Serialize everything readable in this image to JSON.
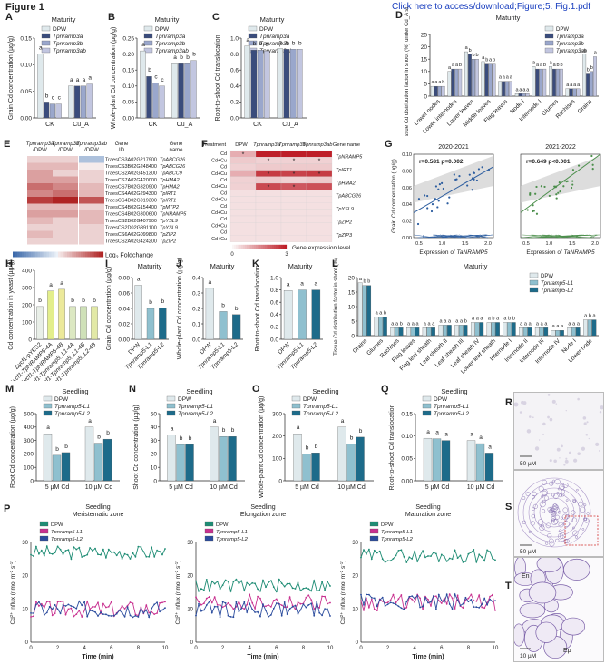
{
  "doc": {
    "figure_label": "Figure 1",
    "download_link": "Click here to access/download;Figure;5. Fig.1.pdf"
  },
  "colors": {
    "dpw": "#dfe9ec",
    "a": "#3a4c7c",
    "b": "#9aa7cc",
    "ab": "#c2c6e0",
    "l1": "#8fc0cf",
    "l2": "#1d6b8a",
    "green": "#1e8c74",
    "pink": "#c8308f",
    "blue": "#2a4b9d"
  },
  "legend_top": [
    "DPW",
    "Tpnramp3a",
    "Tpnramp3b",
    "Tpnramp3ab"
  ],
  "legend_l": [
    "DPW",
    "Tpnramp5-L1",
    "Tpnramp5-L2"
  ],
  "panels": {
    "A": {
      "letter": "A",
      "title": "Maturity",
      "ylabel": "Grain Cd concentration (µg/g)",
      "yticks": [
        "0.00",
        "0.05",
        "0.10",
        "0.15"
      ],
      "cats": [
        "CK",
        "Cu_A"
      ],
      "values": [
        [
          0.16,
          0.08
        ],
        [
          0.04,
          0.08
        ],
        [
          0.035,
          0.08
        ],
        [
          0.035,
          0.085
        ]
      ],
      "sig": [
        [
          "a",
          "a"
        ],
        [
          "b",
          "a"
        ],
        [
          "c",
          "a"
        ],
        [
          "c",
          "a"
        ]
      ],
      "ymax": 0.2
    },
    "B": {
      "letter": "B",
      "title": "Maturity",
      "ylabel": "Whole-plant Cd concentration (µg/g)",
      "yticks": [
        "0.00",
        "0.05",
        "0.10",
        "0.15",
        "0.20",
        "0.25"
      ],
      "cats": [
        "CK",
        "Cu_A"
      ],
      "values": [
        [
          0.21,
          0.17
        ],
        [
          0.13,
          0.17
        ],
        [
          0.11,
          0.17
        ],
        [
          0.1,
          0.18
        ]
      ],
      "sig": [
        [
          "a",
          "a"
        ],
        [
          "b",
          "b"
        ],
        [
          "c",
          "b"
        ],
        [
          "c",
          "b"
        ]
      ],
      "ymax": 0.25
    },
    "C": {
      "letter": "C",
      "title": "Maturity",
      "ylabel": "Root-to-shoot Cd translocation",
      "yticks": [
        "0.0",
        "0.2",
        "0.4",
        "0.6",
        "0.8",
        "1.0"
      ],
      "cats": [
        "CK",
        "Cu_A"
      ],
      "values": [
        [
          0.9,
          0.87
        ],
        [
          0.85,
          0.86
        ],
        [
          0.85,
          0.86
        ],
        [
          0.84,
          0.86
        ]
      ],
      "sig": [
        [
          "a",
          "a"
        ],
        [
          "b",
          "b"
        ],
        [
          "b",
          "b"
        ],
        [
          "b",
          "b"
        ]
      ],
      "ymax": 1.0
    },
    "D": {
      "letter": "D",
      "title": "Maturity",
      "ylabel": "Tissue Cd distribution factor in shoot (%) under Cd_A stress",
      "yticks": [
        "0",
        "5",
        "10",
        "15",
        "20",
        "25"
      ],
      "cats": [
        "Lower nodes",
        "Lower internodes",
        "Lower leaves",
        "Middle leaves",
        "Flag leaves",
        "Node I",
        "Internode I",
        "Glumes",
        "Rachises",
        "Grains"
      ],
      "values": [
        [
          4,
          4,
          4,
          4
        ],
        [
          10,
          11,
          11,
          11
        ],
        [
          18,
          17,
          15,
          15
        ],
        [
          14,
          13,
          13,
          13
        ],
        [
          6,
          6,
          6,
          6
        ],
        [
          1,
          1,
          1,
          1
        ],
        [
          12,
          11,
          11,
          11
        ],
        [
          12,
          11,
          11,
          11
        ],
        [
          3,
          3,
          3,
          3
        ],
        [
          17,
          9,
          10,
          16
        ]
      ],
      "sig": [
        "aaab",
        "aaab",
        "abbb",
        "abab",
        "aaaa",
        "aaaa",
        "aaab",
        "aabb",
        "aaaa",
        "abba"
      ],
      "ymax": 25
    },
    "E": {
      "letter": "E",
      "cols": [
        "Tpnramp3a /DPW",
        "Tpnramp3b /DPW",
        "Tpnramp3ab /DPW",
        "Gene ID",
        "Gene name"
      ],
      "genes": [
        [
          "TraesCS3A02G217900",
          "TpABCG26"
        ],
        [
          "TraesCS3B02G248400",
          "TpABCG26"
        ],
        [
          "TraesCS2A02G451300",
          "TpABCC9"
        ],
        [
          "TraesCS7A02G420000",
          "TpHMA2"
        ],
        [
          "TraesCS7B02G320900",
          "TpHMA2"
        ],
        [
          "TraesCS4A02G294300",
          "TpIRT1"
        ],
        [
          "TraesCS4B02G019300",
          "TpIRT1"
        ],
        [
          "TraesCS4B02G154400",
          "TpMTP2"
        ],
        [
          "TraesCS4B02G300600",
          "TpNRAMP5"
        ],
        [
          "TraesCS2B02G407900",
          "TpYSL9"
        ],
        [
          "TraesCS2D02G391100",
          "TpYSL9"
        ],
        [
          "TraesCS6A02G099800",
          "TpZIP2"
        ],
        [
          "TraesCS2A02G424200",
          "TpZIP2"
        ]
      ],
      "matrix": [
        [
          1,
          1,
          -3
        ],
        [
          2,
          2,
          0
        ],
        [
          3,
          1,
          1
        ],
        [
          3,
          3,
          1
        ],
        [
          5,
          4,
          2
        ],
        [
          4,
          5,
          2
        ],
        [
          7,
          8,
          6
        ],
        [
          2,
          2,
          1
        ],
        [
          3,
          3,
          2
        ],
        [
          2,
          1,
          2
        ],
        [
          1,
          1,
          1
        ],
        [
          2,
          1,
          1
        ],
        [
          1,
          1,
          1
        ]
      ],
      "scale_label": "Log",
      "scale_sub": "2",
      "scale_suffix": " Foldchange",
      "scale_ticks": [
        "-8",
        "0",
        "8"
      ]
    },
    "F": {
      "letter": "F",
      "header": [
        "Treatment",
        "DPW",
        "Tpnramp3a",
        "Tpnramp3b",
        "Tpnramp3ab",
        "Gene name"
      ],
      "rows": [
        "Cd",
        "Cd+Cu",
        "Cd",
        "Cd+Cu",
        "Cd",
        "Cd+Cu",
        "Cd",
        "Cd+Cu",
        "Cd",
        "Cd+Cu",
        "Cd",
        "Cd+Cu",
        "Cd",
        "Cd+Cu"
      ],
      "genes": [
        "TpNRAMP5",
        "TpIRT1",
        "TpHMA2",
        "TpABCG26",
        "TpYSL9",
        "TpZIP2",
        "TpZIP3"
      ],
      "levels": [
        [
          1,
          3,
          3,
          3
        ],
        [
          0.6,
          0.5,
          0.5,
          0.5
        ],
        [
          0.5,
          0.6,
          0.6,
          0.6
        ],
        [
          1,
          2.6,
          2.5,
          2.6
        ],
        [
          0.5,
          0.6,
          0.5,
          0.6
        ],
        [
          0.5,
          2.4,
          2.2,
          2.3
        ],
        [
          0.3,
          0.3,
          0.3,
          0.3
        ],
        [
          0.3,
          0.3,
          0.3,
          0.3
        ],
        [
          0.3,
          0.3,
          0.3,
          0.3
        ],
        [
          0.3,
          0.3,
          0.3,
          0.3
        ],
        [
          0.3,
          0.3,
          0.3,
          0.3
        ],
        [
          0.3,
          0.3,
          0.3,
          0.3
        ],
        [
          0.3,
          0.3,
          0.3,
          0.3
        ],
        [
          0.3,
          0.3,
          0.3,
          0.3
        ]
      ],
      "stars": "*",
      "scale_label": "Gene expression level",
      "scale_ticks": [
        "0",
        "3"
      ]
    },
    "G": {
      "letter": "G",
      "plots": [
        {
          "title": "2020-2021",
          "stat": "r=0.581  p=0.002"
        },
        {
          "title": "2021-2022",
          "stat": "r=0.649  p<0.001"
        }
      ],
      "ylabel": "Grain Cd concentration (µg/g)",
      "xlabel": "Expression of TaNRAMP5",
      "yticks": [
        "0.00",
        "0.02",
        "0.04",
        "0.06",
        "0.08",
        "0.10"
      ],
      "xticks": [
        "0.5",
        "1.0",
        "1.5",
        "2.0"
      ]
    },
    "H": {
      "letter": "H",
      "ylabel": "Cd concentration in yeast (µg/g)",
      "yticks": [
        "0",
        "100",
        "200",
        "300",
        "400"
      ],
      "cats": [
        "Δycf1-pYES2",
        "Δycf1-TpNRAMP5-4A",
        "Δycf1-TpNRAMP5-4B",
        "Δycf1-Tpnramp5_L1-4A",
        "Δycf1-Tpnramp5_L1-4B",
        "Δycf1-Tpnramp5_L2-4B"
      ],
      "values": [
        190,
        280,
        290,
        190,
        190,
        190
      ],
      "sig": [
        "b",
        "a",
        "a",
        "b",
        "b",
        "b"
      ],
      "ymax": 400
    },
    "I": {
      "letter": "I",
      "title": "Maturity",
      "ylabel": "Grain Cd concentration (µg/g)",
      "yticks": [
        "0.00",
        "0.02",
        "0.04",
        "0.06",
        "0.08"
      ],
      "cats": [
        "DPW",
        "Tpnramp5-L1",
        "Tpnramp5-L2"
      ],
      "values": [
        0.07,
        0.04,
        0.041
      ],
      "sig": [
        "a",
        "b",
        "b"
      ],
      "ymax": 0.08
    },
    "J": {
      "letter": "J",
      "title": "Maturity",
      "ylabel": "Whole-plant Cd concentration (µg/g)",
      "yticks": [
        "0.0",
        "0.1",
        "0.2",
        "0.3",
        "0.4"
      ],
      "cats": [
        "DPW",
        "Tpnramp5-L1",
        "Tpnramp5-L2"
      ],
      "values": [
        0.33,
        0.18,
        0.16
      ],
      "sig": [
        "a",
        "b",
        "b"
      ],
      "ymax": 0.4
    },
    "K": {
      "letter": "K",
      "title": "Maturity",
      "ylabel": "Root-to-shoot Cd translocation",
      "yticks": [
        "0.0",
        "0.2",
        "0.4",
        "0.6",
        "0.8",
        "1.0"
      ],
      "cats": [
        "DPW",
        "Tpnramp5-L1",
        "Tpnramp5-L2"
      ],
      "values": [
        0.79,
        0.8,
        0.8
      ],
      "sig": [
        "a",
        "a",
        "a"
      ],
      "ymax": 1.0
    },
    "L": {
      "letter": "L",
      "title": "Maturity",
      "ylabel": "Tissue Cd distribution factor in shoot (%)",
      "yticks": [
        "0",
        "5",
        "10",
        "15",
        "20"
      ],
      "cats": [
        "Grains",
        "Glumes",
        "Rachises",
        "Flag leaves",
        "Flag leaf sheath",
        "Leaf sheath II",
        "Leaf sheath III",
        "Leaf sheath IV",
        "Lower leaf sheath",
        "Internode I",
        "Internode II",
        "Internode III",
        "Internode IV",
        "Node I",
        "Lower node"
      ],
      "values": [
        [
          20,
          19,
          19
        ],
        [
          7,
          7,
          7
        ],
        [
          3,
          3,
          3
        ],
        [
          3,
          3,
          3
        ],
        [
          3,
          3,
          3
        ],
        [
          4,
          4,
          4
        ],
        [
          4,
          4,
          4
        ],
        [
          5,
          5,
          5
        ],
        [
          5,
          5,
          5
        ],
        [
          5,
          5,
          5
        ],
        [
          3,
          3,
          3
        ],
        [
          3,
          3,
          3
        ],
        [
          2,
          2,
          2
        ],
        [
          3,
          3,
          3
        ],
        [
          6,
          6,
          6
        ]
      ],
      "sig": [
        "abb",
        "aab",
        "aab",
        "aaa",
        "aaa",
        "aaa",
        "aab",
        "aaa",
        "aba",
        "abb",
        "aaa",
        "aaa",
        "aaa",
        "aaa",
        "aba"
      ],
      "ymax": 22
    },
    "M": {
      "letter": "M",
      "title": "Seedling",
      "ylabel": "Root Cd concentration (µg/g)",
      "yticks": [
        "0",
        "100",
        "200",
        "300",
        "400",
        "500"
      ],
      "cats": [
        "5 µM Cd",
        "10 µM Cd"
      ],
      "values": [
        [
          350,
          400
        ],
        [
          190,
          280
        ],
        [
          210,
          310
        ]
      ],
      "sig": [
        [
          "a",
          "a"
        ],
        [
          "b",
          "b"
        ],
        [
          "b",
          "b"
        ]
      ],
      "ymax": 500
    },
    "N": {
      "letter": "N",
      "title": "Seedling",
      "ylabel": "Shoot Cd concentration (µg/g)",
      "yticks": [
        "0",
        "10",
        "20",
        "30",
        "40",
        "50"
      ],
      "cats": [
        "5 µM Cd",
        "10 µM Cd"
      ],
      "values": [
        [
          34,
          40
        ],
        [
          27,
          33
        ],
        [
          27,
          33
        ]
      ],
      "sig": [
        [
          "a",
          "a"
        ],
        [
          "b",
          "b"
        ],
        [
          "b",
          "b"
        ]
      ],
      "ymax": 50
    },
    "O": {
      "letter": "O",
      "title": "Seedling",
      "ylabel": "Whole-plant Cd concentration (µg/g)",
      "yticks": [
        "0",
        "100",
        "200",
        "300"
      ],
      "cats": [
        "5 µM Cd",
        "10 µM Cd"
      ],
      "values": [
        [
          210,
          240
        ],
        [
          120,
          165
        ],
        [
          125,
          195
        ]
      ],
      "sig": [
        [
          "a",
          "a"
        ],
        [
          "b",
          "b"
        ],
        [
          "b",
          "b"
        ]
      ],
      "ymax": 300
    },
    "Q": {
      "letter": "Q",
      "title": "Seedling",
      "ylabel": "Root-to-shoot Cd translocation",
      "yticks": [
        "0.00",
        "0.05",
        "0.10",
        "0.15"
      ],
      "cats": [
        "5 µM Cd",
        "10 µM Cd"
      ],
      "values": [
        [
          0.095,
          0.09
        ],
        [
          0.094,
          0.083
        ],
        [
          0.09,
          0.062
        ]
      ],
      "sig": [
        [
          "a",
          "a"
        ],
        [
          "a",
          "a"
        ],
        [
          "a",
          "a"
        ]
      ],
      "ymax": 0.15
    },
    "P": {
      "letter": "P",
      "plots": [
        {
          "title1": "Seedling",
          "title2": "Meristematic zone"
        },
        {
          "title1": "Seedling",
          "title2": "Elongation zone"
        },
        {
          "title1": "Seedling",
          "title2": "Maturation zone"
        }
      ],
      "ylabel": "Cd2+ influx (nmol m-2 s-1)",
      "y_pre": "Cd",
      "y_sup": "2+",
      "y_post": " influx (nmol m",
      "y_sup2": "-2",
      "y_mid": " s",
      "y_sup3": "-1",
      "y_end": ")",
      "xlabel": "Time (min)",
      "xticks": [
        "0",
        "2",
        "4",
        "6",
        "8",
        "10"
      ],
      "yticks": [
        "0",
        "10",
        "20",
        "30"
      ],
      "levels": [
        [
          27,
          10,
          10
        ],
        [
          17,
          12,
          10
        ],
        [
          26,
          12,
          12
        ]
      ]
    },
    "R": {
      "letter": "R",
      "scale": "50 µM"
    },
    "S": {
      "letter": "S",
      "scale": "50 µM"
    },
    "T": {
      "letter": "T",
      "scale": "10 µM",
      "label_en": "En",
      "label_ep": "Ep"
    }
  }
}
